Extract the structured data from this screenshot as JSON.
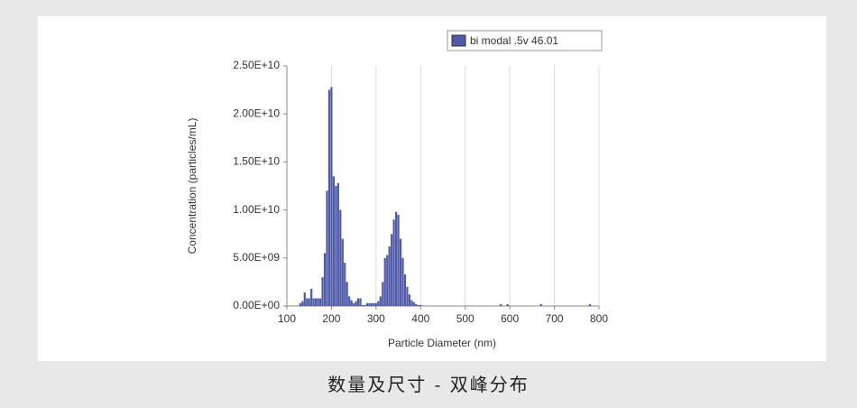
{
  "chart_data": {
    "type": "bar",
    "xlabel": "Particle Diameter (nm)",
    "ylabel": "Concentration (particles/mL)",
    "legend": "upper right",
    "grid": "x",
    "xlim": [
      100,
      800
    ],
    "xticks": [
      100,
      200,
      300,
      400,
      500,
      600,
      700,
      800
    ],
    "ylim": [
      0,
      25000000000
    ],
    "yticks": [
      {
        "value": 0,
        "label": "0.00E+00"
      },
      {
        "value": 5000000000,
        "label": "5.00E+09"
      },
      {
        "value": 10000000000,
        "label": "1.00E+10"
      },
      {
        "value": 15000000000,
        "label": "1.50E+10"
      },
      {
        "value": 20000000000,
        "label": "2.00E+10"
      },
      {
        "value": 25000000000,
        "label": "2.50E+10"
      }
    ],
    "x": [
      130,
      135,
      140,
      145,
      150,
      155,
      160,
      165,
      170,
      175,
      180,
      185,
      190,
      195,
      200,
      205,
      210,
      215,
      220,
      225,
      230,
      235,
      240,
      245,
      250,
      255,
      260,
      265,
      270,
      275,
      280,
      285,
      290,
      295,
      300,
      305,
      310,
      315,
      320,
      325,
      330,
      335,
      340,
      345,
      350,
      355,
      360,
      365,
      370,
      375,
      380,
      385,
      390,
      395,
      400,
      580,
      595,
      670,
      780
    ],
    "series": [
      {
        "name": "bi modal .5v 46.01",
        "color": "#4f5aa8",
        "values": [
          300000000,
          500000000,
          1400000000,
          800000000,
          800000000,
          1800000000,
          800000000,
          800000000,
          800000000,
          800000000,
          3000000000,
          5500000000,
          12000000000,
          22500000000,
          22800000000,
          13500000000,
          12500000000,
          12800000000,
          10000000000,
          7000000000,
          4500000000,
          2500000000,
          1000000000,
          600000000,
          300000000,
          500000000,
          800000000,
          800000000,
          100000000,
          100000000,
          300000000,
          300000000,
          300000000,
          300000000,
          300000000,
          500000000,
          1000000000,
          2500000000,
          5000000000,
          5300000000,
          6200000000,
          7500000000,
          9000000000,
          9800000000,
          9500000000,
          7000000000,
          5000000000,
          3300000000,
          2000000000,
          1200000000,
          600000000,
          400000000,
          200000000,
          100000000,
          100000000,
          200000000,
          200000000,
          200000000,
          200000000
        ]
      }
    ]
  },
  "caption": "数量及尺寸 - 双峰分布"
}
